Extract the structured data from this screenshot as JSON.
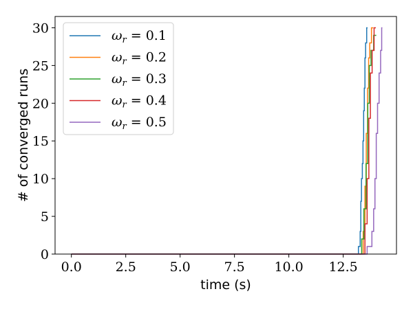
{
  "chart_data": {
    "type": "line",
    "title": "",
    "xlabel": "time (s)",
    "ylabel": "# of converged runs",
    "xlim": [
      -0.75,
      14.95
    ],
    "ylim": [
      0,
      31.5
    ],
    "xticks": [
      "0.0",
      "2.5",
      "5.0",
      "7.5",
      "10.0",
      "12.5"
    ],
    "xtick_values": [
      0,
      2.5,
      5,
      7.5,
      10,
      12.5
    ],
    "yticks": [
      "0",
      "5",
      "10",
      "15",
      "20",
      "25",
      "30"
    ],
    "ytick_values": [
      0,
      5,
      10,
      15,
      20,
      25,
      30
    ],
    "grid": false,
    "legend_position": "top-left",
    "series": [
      {
        "name": "ω_r = 0.1",
        "legend_value": "0.1",
        "color": "#1f77b4",
        "step_points": [
          [
            0,
            0
          ],
          [
            13.2,
            0
          ],
          [
            13.2,
            1
          ],
          [
            13.28,
            1
          ],
          [
            13.28,
            3
          ],
          [
            13.31,
            3
          ],
          [
            13.31,
            7
          ],
          [
            13.34,
            7
          ],
          [
            13.34,
            10
          ],
          [
            13.38,
            10
          ],
          [
            13.38,
            12
          ],
          [
            13.41,
            12
          ],
          [
            13.41,
            15
          ],
          [
            13.44,
            15
          ],
          [
            13.44,
            19
          ],
          [
            13.47,
            19
          ],
          [
            13.47,
            22
          ],
          [
            13.5,
            22
          ],
          [
            13.5,
            26
          ],
          [
            13.53,
            26
          ],
          [
            13.53,
            28
          ],
          [
            13.58,
            28
          ],
          [
            13.58,
            30
          ],
          [
            13.62,
            30
          ]
        ]
      },
      {
        "name": "ω_r = 0.2",
        "legend_value": "0.2",
        "color": "#ff7f0e",
        "step_points": [
          [
            0,
            0
          ],
          [
            13.42,
            0
          ],
          [
            13.42,
            3
          ],
          [
            13.5,
            3
          ],
          [
            13.5,
            9
          ],
          [
            13.56,
            9
          ],
          [
            13.56,
            16
          ],
          [
            13.62,
            16
          ],
          [
            13.62,
            22
          ],
          [
            13.67,
            22
          ],
          [
            13.67,
            26
          ],
          [
            13.72,
            26
          ],
          [
            13.72,
            28
          ],
          [
            13.8,
            28
          ],
          [
            13.8,
            30
          ],
          [
            13.88,
            30
          ]
        ]
      },
      {
        "name": "ω_r = 0.3",
        "legend_value": "0.3",
        "color": "#2ca02c",
        "step_points": [
          [
            0,
            0
          ],
          [
            13.35,
            0
          ],
          [
            13.35,
            2
          ],
          [
            13.45,
            2
          ],
          [
            13.45,
            6
          ],
          [
            13.55,
            6
          ],
          [
            13.55,
            12
          ],
          [
            13.63,
            12
          ],
          [
            13.63,
            20
          ],
          [
            13.7,
            20
          ],
          [
            13.7,
            25
          ],
          [
            13.78,
            25
          ],
          [
            13.78,
            27
          ],
          [
            13.9,
            27
          ],
          [
            13.9,
            29
          ],
          [
            14.02,
            29
          ]
        ]
      },
      {
        "name": "ω_r = 0.4",
        "legend_value": "0.4",
        "color": "#d62728",
        "step_points": [
          [
            0,
            0
          ],
          [
            13.5,
            0
          ],
          [
            13.5,
            4
          ],
          [
            13.6,
            4
          ],
          [
            13.6,
            10
          ],
          [
            13.68,
            10
          ],
          [
            13.68,
            18
          ],
          [
            13.75,
            18
          ],
          [
            13.75,
            24
          ],
          [
            13.83,
            24
          ],
          [
            13.83,
            27
          ],
          [
            13.92,
            27
          ],
          [
            13.92,
            30
          ],
          [
            14.0,
            30
          ]
        ]
      },
      {
        "name": "ω_r = 0.5",
        "legend_value": "0.5",
        "color": "#9467bd",
        "step_points": [
          [
            0,
            0
          ],
          [
            13.6,
            0
          ],
          [
            13.6,
            1
          ],
          [
            13.82,
            1
          ],
          [
            13.82,
            3
          ],
          [
            13.9,
            3
          ],
          [
            13.9,
            6
          ],
          [
            13.96,
            6
          ],
          [
            13.96,
            10
          ],
          [
            14.02,
            10
          ],
          [
            14.02,
            16
          ],
          [
            14.08,
            16
          ],
          [
            14.08,
            20
          ],
          [
            14.15,
            20
          ],
          [
            14.15,
            24
          ],
          [
            14.22,
            24
          ],
          [
            14.22,
            27
          ],
          [
            14.27,
            27
          ],
          [
            14.27,
            30
          ],
          [
            14.3,
            30
          ]
        ]
      }
    ]
  }
}
